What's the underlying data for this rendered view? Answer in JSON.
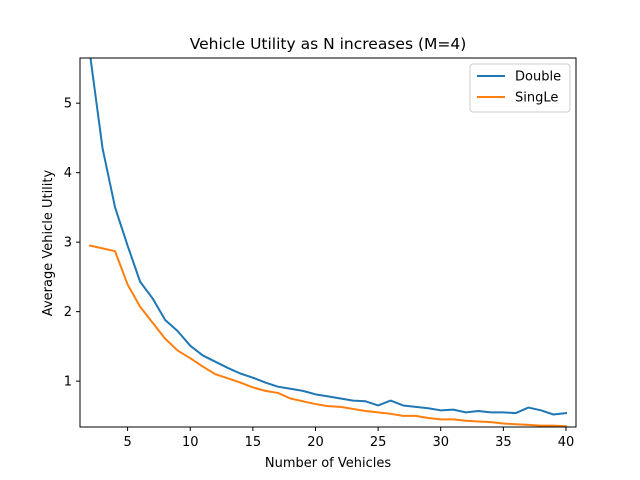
{
  "chart_data": {
    "type": "line",
    "title": "Vehicle Utility as N increases (M=4)",
    "xlabel": "Number of Vehicles",
    "ylabel": "Average Vehicle Utility",
    "xlim": [
      1.2,
      40.8
    ],
    "ylim": [
      0.34,
      5.65
    ],
    "xticks": [
      5,
      10,
      15,
      20,
      25,
      30,
      35,
      40
    ],
    "yticks": [
      1,
      2,
      3,
      4,
      5
    ],
    "grid": false,
    "legend_position": "top-right",
    "x": [
      2,
      3,
      4,
      5,
      6,
      7,
      8,
      9,
      10,
      11,
      12,
      13,
      14,
      15,
      16,
      17,
      18,
      19,
      20,
      21,
      22,
      23,
      24,
      25,
      26,
      27,
      28,
      29,
      30,
      31,
      32,
      33,
      34,
      35,
      36,
      37,
      38,
      39,
      40
    ],
    "series": [
      {
        "name": "Double",
        "color": "#1f77b4",
        "values": [
          5.7,
          4.35,
          3.5,
          2.95,
          2.43,
          2.19,
          1.88,
          1.72,
          1.51,
          1.37,
          1.28,
          1.19,
          1.11,
          1.05,
          0.98,
          0.92,
          0.89,
          0.86,
          0.81,
          0.78,
          0.75,
          0.72,
          0.71,
          0.65,
          0.72,
          0.65,
          0.63,
          0.61,
          0.58,
          0.59,
          0.55,
          0.57,
          0.55,
          0.55,
          0.54,
          0.62,
          0.58,
          0.52,
          0.54
        ]
      },
      {
        "name": "SingLe",
        "color": "#ff7f0e",
        "values": [
          2.95,
          2.91,
          2.87,
          2.39,
          2.07,
          1.84,
          1.61,
          1.44,
          1.33,
          1.21,
          1.1,
          1.04,
          0.98,
          0.91,
          0.86,
          0.83,
          0.75,
          0.71,
          0.67,
          0.64,
          0.63,
          0.6,
          0.57,
          0.55,
          0.53,
          0.5,
          0.5,
          0.47,
          0.45,
          0.45,
          0.43,
          0.42,
          0.41,
          0.39,
          0.38,
          0.37,
          0.36,
          0.36,
          0.35
        ]
      }
    ]
  }
}
